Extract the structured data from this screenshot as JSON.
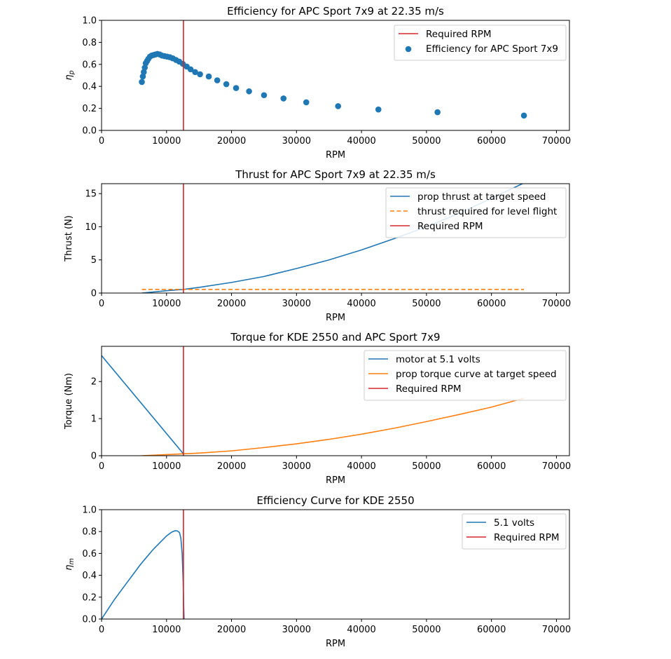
{
  "chart_data": [
    {
      "type": "scatter",
      "title": "Efficiency for APC Sport 7x9 at 22.35 m/s",
      "xlabel": "RPM",
      "ylabel": "η",
      "ylabel_sub": "p",
      "xlim": [
        0,
        72000
      ],
      "ylim": [
        0,
        1.0
      ],
      "xticks": [
        0,
        10000,
        20000,
        30000,
        40000,
        50000,
        60000,
        70000
      ],
      "yticks": [
        0.0,
        0.2,
        0.4,
        0.6,
        0.8,
        1.0
      ],
      "ytick_format": "1",
      "legend_position": "top-right",
      "vline": {
        "name": "Required RPM",
        "x": 12600,
        "color": "#d62728"
      },
      "series": [
        {
          "name": "Efficiency for APC Sport 7x9",
          "kind": "scatter",
          "color": "#1f77b4",
          "x": [
            6200,
            6350,
            6500,
            6650,
            6800,
            7000,
            7200,
            7450,
            7700,
            8000,
            8300,
            8600,
            8950,
            9300,
            9700,
            10100,
            10500,
            10950,
            11450,
            11950,
            12500,
            13100,
            13700,
            14400,
            15150,
            16500,
            17800,
            19200,
            20700,
            22700,
            25000,
            28000,
            31500,
            36400,
            42600,
            51700,
            65000
          ],
          "y": [
            0.44,
            0.49,
            0.53,
            0.57,
            0.61,
            0.63,
            0.65,
            0.67,
            0.68,
            0.685,
            0.69,
            0.695,
            0.69,
            0.68,
            0.675,
            0.67,
            0.665,
            0.655,
            0.64,
            0.625,
            0.605,
            0.58,
            0.555,
            0.53,
            0.51,
            0.49,
            0.455,
            0.42,
            0.385,
            0.355,
            0.32,
            0.29,
            0.255,
            0.22,
            0.19,
            0.165,
            0.135
          ]
        }
      ]
    },
    {
      "type": "line",
      "title": "Thrust for APC Sport 7x9 at 22.35 m/s",
      "xlabel": "RPM",
      "ylabel": "Thrust (N)",
      "xlim": [
        0,
        72000
      ],
      "ylim": [
        0,
        16.5
      ],
      "xticks": [
        0,
        10000,
        20000,
        30000,
        40000,
        50000,
        60000,
        70000
      ],
      "yticks": [
        0,
        5,
        10,
        15
      ],
      "ytick_format": "0",
      "legend_position": "top-right",
      "vline": {
        "name": "Required RPM",
        "x": 12600,
        "color": "#d62728"
      },
      "series": [
        {
          "name": "prop thrust at target speed",
          "kind": "line",
          "color": "#1f77b4",
          "x": [
            6200,
            10000,
            12600,
            15000,
            20000,
            25000,
            30000,
            35000,
            40000,
            45000,
            50000,
            55000,
            60000,
            65000
          ],
          "y": [
            0.0,
            0.35,
            0.55,
            0.85,
            1.6,
            2.5,
            3.7,
            5.0,
            6.5,
            8.2,
            10.0,
            12.0,
            14.3,
            16.6
          ]
        },
        {
          "name": "thrust required for level flight",
          "kind": "dashed",
          "color": "#ff7f0e",
          "x": [
            6200,
            65000
          ],
          "y": [
            0.55,
            0.55
          ]
        }
      ]
    },
    {
      "type": "line",
      "title": "Torque for KDE 2550 and APC Sport 7x9",
      "xlabel": "RPM",
      "ylabel": "Torque (Nm)",
      "xlim": [
        0,
        72000
      ],
      "ylim": [
        0,
        2.95
      ],
      "xticks": [
        0,
        10000,
        20000,
        30000,
        40000,
        50000,
        60000,
        70000
      ],
      "yticks": [
        0,
        1,
        2
      ],
      "ytick_format": "0",
      "legend_position": "top-right",
      "vline": {
        "name": "Required RPM",
        "x": 12600,
        "color": "#d62728"
      },
      "series": [
        {
          "name": "motor at 5.1 volts",
          "kind": "line",
          "color": "#1f77b4",
          "x": [
            0,
            12600
          ],
          "y": [
            2.7,
            0.05
          ]
        },
        {
          "name": "prop torque curve at target speed",
          "kind": "line",
          "color": "#ff7f0e",
          "x": [
            6200,
            10000,
            12600,
            15000,
            20000,
            25000,
            30000,
            35000,
            40000,
            45000,
            50000,
            55000,
            60000,
            65000
          ],
          "y": [
            0.0,
            0.03,
            0.05,
            0.07,
            0.13,
            0.22,
            0.32,
            0.44,
            0.58,
            0.74,
            0.92,
            1.11,
            1.31,
            1.55
          ]
        }
      ]
    },
    {
      "type": "line",
      "title": "Efficiency Curve for KDE 2550",
      "xlabel": "RPM",
      "ylabel": "η",
      "ylabel_sub": "m",
      "xlim": [
        0,
        72000
      ],
      "ylim": [
        0,
        1.0
      ],
      "xticks": [
        0,
        10000,
        20000,
        30000,
        40000,
        50000,
        60000,
        70000
      ],
      "yticks": [
        0.0,
        0.2,
        0.4,
        0.6,
        0.8,
        1.0
      ],
      "ytick_format": "1",
      "legend_position": "top-right",
      "vline": {
        "name": "Required RPM",
        "x": 12600,
        "color": "#d62728"
      },
      "series": [
        {
          "name": "5.1 volts",
          "kind": "line",
          "color": "#1f77b4",
          "x": [
            0,
            1000,
            2000,
            3000,
            4000,
            5000,
            6000,
            7000,
            8000,
            9000,
            10000,
            10800,
            11300,
            11700,
            12000,
            12200,
            12400,
            12550,
            12650,
            12700
          ],
          "y": [
            0.0,
            0.09,
            0.18,
            0.26,
            0.34,
            0.42,
            0.5,
            0.57,
            0.64,
            0.7,
            0.76,
            0.795,
            0.807,
            0.805,
            0.79,
            0.74,
            0.6,
            0.35,
            0.1,
            0.0
          ]
        }
      ]
    }
  ]
}
